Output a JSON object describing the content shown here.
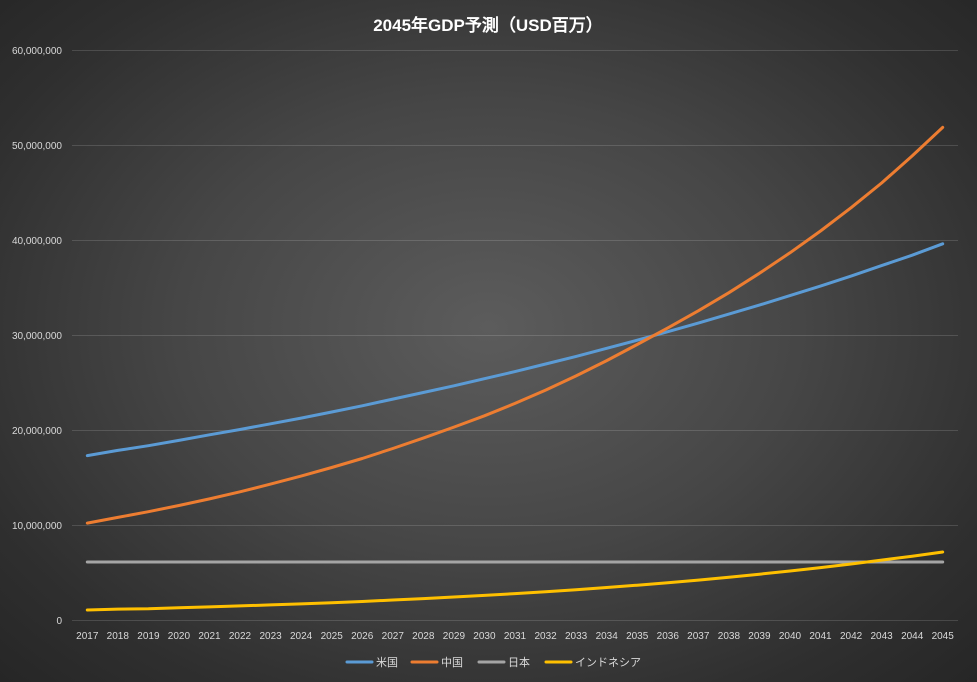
{
  "chart_data": {
    "type": "line",
    "title": "2045年GDP予測（USD百万）",
    "xlabel": "",
    "ylabel": "",
    "categories": [
      "2017",
      "2018",
      "2019",
      "2020",
      "2021",
      "2022",
      "2023",
      "2024",
      "2025",
      "2026",
      "2027",
      "2028",
      "2029",
      "2030",
      "2031",
      "2032",
      "2033",
      "2034",
      "2035",
      "2036",
      "2037",
      "2038",
      "2039",
      "2040",
      "2041",
      "2042",
      "2043",
      "2044",
      "2045"
    ],
    "ylim": [
      0,
      60000000
    ],
    "y_ticks": [
      0,
      10000000,
      20000000,
      30000000,
      40000000,
      50000000,
      60000000
    ],
    "y_tick_labels": [
      "0",
      "10,000,000",
      "20,000,000",
      "30,000,000",
      "40,000,000",
      "50,000,000",
      "60,000,000"
    ],
    "grid": true,
    "legend": "bottom",
    "series": [
      {
        "name": "米国",
        "color": "#5b9bd5",
        "values": [
          17300000,
          17850000,
          18350000,
          18900000,
          19500000,
          20050000,
          20650000,
          21250000,
          21900000,
          22550000,
          23250000,
          23950000,
          24650000,
          25400000,
          26150000,
          26950000,
          27750000,
          28600000,
          29450000,
          30350000,
          31250000,
          32200000,
          33150000,
          34150000,
          35150000,
          36200000,
          37300000,
          38400000,
          39600000
        ]
      },
      {
        "name": "中国",
        "color": "#ed7d31",
        "values": [
          10200000,
          10800000,
          11400000,
          12050000,
          12750000,
          13500000,
          14300000,
          15150000,
          16050000,
          17000000,
          18050000,
          19150000,
          20300000,
          21500000,
          22800000,
          24200000,
          25700000,
          27300000,
          29000000,
          30750000,
          32550000,
          34450000,
          36500000,
          38650000,
          40950000,
          43400000,
          46000000,
          48850000,
          51850000
        ]
      },
      {
        "name": "日本",
        "color": "#a5a5a5",
        "values": [
          6100000,
          6100000,
          6100000,
          6100000,
          6100000,
          6100000,
          6100000,
          6100000,
          6100000,
          6100000,
          6100000,
          6100000,
          6100000,
          6100000,
          6100000,
          6100000,
          6100000,
          6100000,
          6100000,
          6100000,
          6100000,
          6100000,
          6100000,
          6100000,
          6100000,
          6100000,
          6100000,
          6100000,
          6100000
        ]
      },
      {
        "name": "インドネシア",
        "color": "#ffc000",
        "values": [
          1050000,
          1150000,
          1180000,
          1280000,
          1380000,
          1480000,
          1590000,
          1700000,
          1820000,
          1950000,
          2100000,
          2250000,
          2420000,
          2590000,
          2780000,
          2980000,
          3190000,
          3420000,
          3660000,
          3920000,
          4200000,
          4500000,
          4820000,
          5160000,
          5520000,
          5900000,
          6300000,
          6720000,
          7160000
        ]
      }
    ]
  }
}
